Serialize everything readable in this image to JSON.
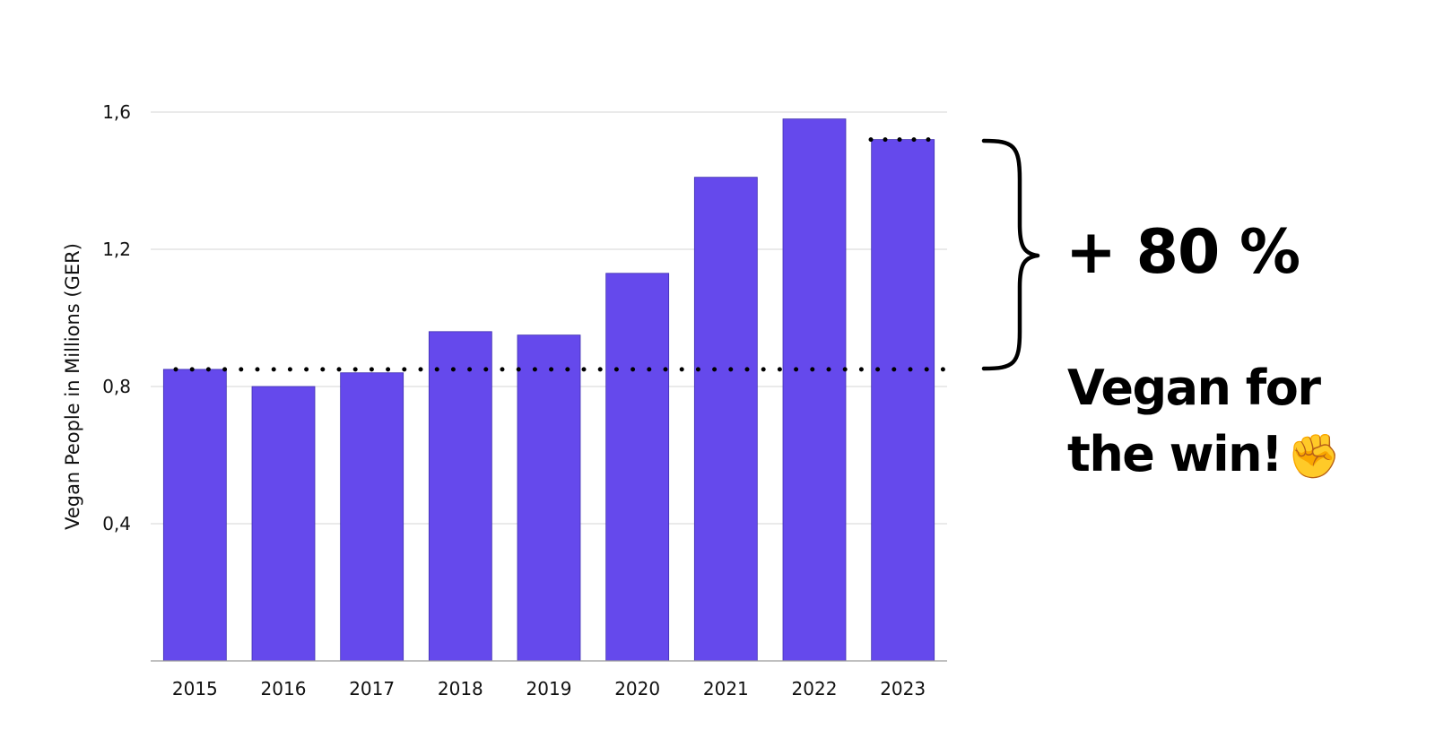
{
  "chart_data": {
    "type": "bar",
    "categories": [
      "2015",
      "2016",
      "2017",
      "2018",
      "2019",
      "2020",
      "2021",
      "2022",
      "2023"
    ],
    "values": [
      0.85,
      0.8,
      0.84,
      0.96,
      0.95,
      1.13,
      1.41,
      1.58,
      1.52
    ],
    "title": "",
    "xlabel": "",
    "ylabel": "Vegan People in Millions (GER)",
    "ylim": [
      0,
      1.6
    ],
    "yticks": [
      {
        "value": 0.4,
        "label": "0,4"
      },
      {
        "value": 0.8,
        "label": "0,8"
      },
      {
        "value": 1.2,
        "label": "1,2"
      },
      {
        "value": 1.6,
        "label": "1,6"
      }
    ],
    "grid": true,
    "bar_color": "#6549EC",
    "reference_lines": [
      {
        "value": 0.85,
        "style": "dotted",
        "color": "#000000"
      },
      {
        "value": 1.52,
        "style": "dotted",
        "color": "#000000"
      }
    ],
    "annotation": "+ 80 %"
  },
  "slogan": {
    "line1": "Vegan for",
    "line2": "the win!",
    "emoji": "✊"
  }
}
